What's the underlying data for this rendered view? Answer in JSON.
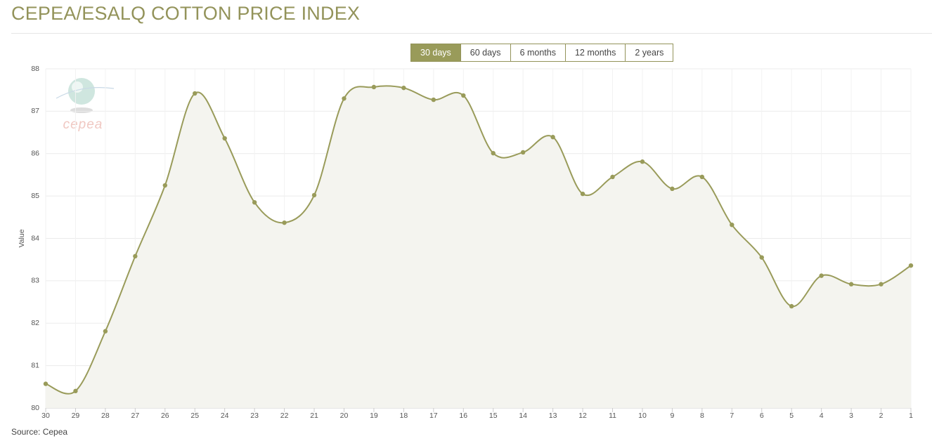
{
  "title": "CEPEA/ESALQ COTTON PRICE INDEX",
  "range_buttons": {
    "labels": [
      "30 days",
      "60 days",
      "6 months",
      "12 months",
      "2 years"
    ],
    "active": 0
  },
  "logo_text": "cepea",
  "source": "Source: Cepea",
  "chart_data": {
    "type": "line",
    "y_label": "Value",
    "categories": [
      "30",
      "29",
      "28",
      "27",
      "26",
      "25",
      "24",
      "23",
      "22",
      "21",
      "20",
      "19",
      "18",
      "17",
      "16",
      "15",
      "14",
      "13",
      "12",
      "11",
      "10",
      "9",
      "8",
      "7",
      "6",
      "5",
      "4",
      "3",
      "2",
      "1"
    ],
    "series": [
      {
        "name": "Value",
        "color": "#999b5a",
        "values": [
          80.57,
          80.4,
          81.81,
          83.58,
          85.25,
          87.42,
          86.36,
          84.85,
          84.37,
          85.02,
          87.3,
          87.57,
          87.55,
          87.27,
          87.37,
          86.01,
          86.03,
          86.39,
          85.05,
          85.45,
          85.81,
          85.17,
          85.45,
          84.32,
          83.55,
          82.4,
          83.12,
          82.92,
          82.92,
          83.36
        ]
      }
    ],
    "ylim": [
      80,
      88
    ],
    "yticks": [
      80,
      81,
      82,
      83,
      84,
      85,
      86,
      87,
      88
    ],
    "grid": true,
    "area_color": "#f4f4ef"
  }
}
